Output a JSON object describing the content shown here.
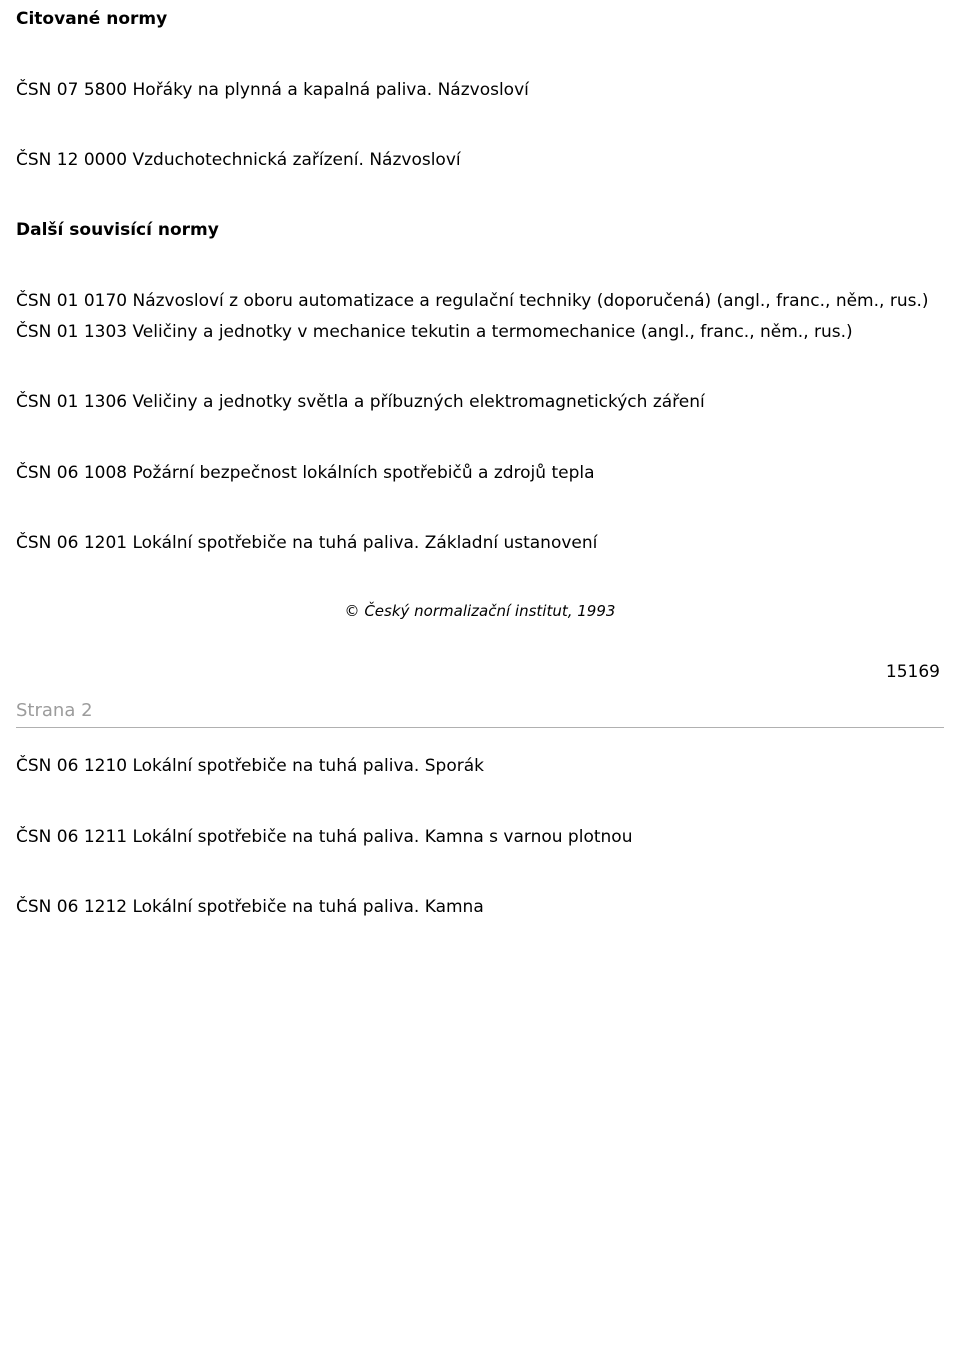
{
  "section1_heading": "Citované normy",
  "s1_p1": "ČSN 07 5800 Hořáky na plynná a kapalná paliva. Názvosloví",
  "s1_p2": "ČSN 12 0000 Vzduchotechnická zařízení. Názvosloví",
  "section2_heading": "Další souvisící normy",
  "s2_p1a": "ČSN 01 0170 Názvosloví z oboru automatizace a regulační techniky (doporučená) (angl., franc., něm., rus.)",
  "s2_p1b": "ČSN 01 1303 Veličiny a jednotky v mechanice tekutin a termomechanice (angl., franc., něm., rus.)",
  "s2_p2": "ČSN 01 1306 Veličiny a jednotky světla a příbuzných elektromagnetických záření",
  "s2_p3": "ČSN 06 1008 Požární bezpečnost lokálních spotřebičů a zdrojů tepla",
  "s2_p4": "ČSN 06 1201 Lokální spotřebiče na tuhá paliva. Základní ustanovení",
  "copyright": "© Český normalizační institut, 1993",
  "doc_number": "15169",
  "page_marker": "Strana 2",
  "s3_p1": "ČSN 06 1210 Lokální spotřebiče na tuhá paliva. Sporák",
  "s3_p2": "ČSN 06 1211 Lokální spotřebiče na tuhá paliva. Kamna s varnou plotnou",
  "s3_p3": "ČSN 06 1212 Lokální spotřebiče na tuhá paliva. Kamna"
}
